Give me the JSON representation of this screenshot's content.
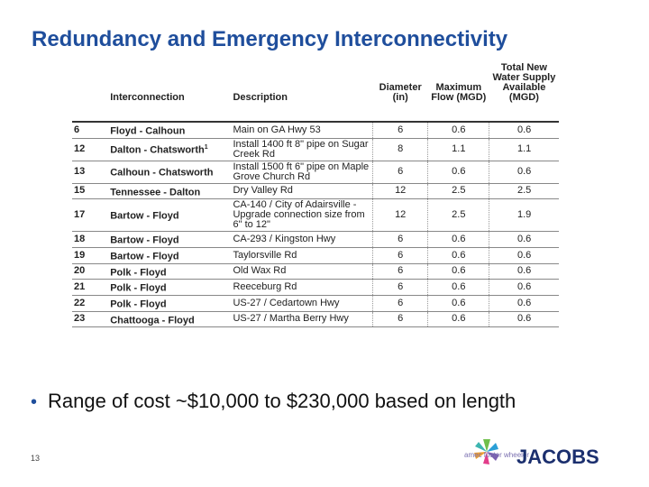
{
  "title": "Redundancy and Emergency Interconnectivity",
  "table": {
    "headers": {
      "id": "",
      "interconnection": "Interconnection",
      "description": "Description",
      "diameter": "Diameter (in)",
      "max_flow": "Maximum Flow (MGD)",
      "total_new": "Total New Water Supply Available (MGD)"
    },
    "rows": [
      {
        "id": "6",
        "interconnection": "Floyd - Calhoun",
        "sup": "",
        "description": "Main on GA Hwy 53",
        "diameter": "6",
        "max_flow": "0.6",
        "total_new": "0.6"
      },
      {
        "id": "12",
        "interconnection": "Dalton - Chatsworth",
        "sup": "1",
        "description": "Install 1400 ft 8\" pipe on Sugar Creek Rd",
        "diameter": "8",
        "max_flow": "1.1",
        "total_new": "1.1"
      },
      {
        "id": "13",
        "interconnection": "Calhoun - Chatsworth",
        "sup": "",
        "description": "Install 1500 ft 6\" pipe on Maple Grove Church Rd",
        "diameter": "6",
        "max_flow": "0.6",
        "total_new": "0.6"
      },
      {
        "id": "15",
        "interconnection": "Tennessee - Dalton",
        "sup": "",
        "description": "Dry Valley Rd",
        "diameter": "12",
        "max_flow": "2.5",
        "total_new": "2.5"
      },
      {
        "id": "17",
        "interconnection": "Bartow - Floyd",
        "sup": "",
        "description": "CA-140 / City of Adairsville - Upgrade connection size from 6\" to 12\"",
        "diameter": "12",
        "max_flow": "2.5",
        "total_new": "1.9"
      },
      {
        "id": "18",
        "interconnection": "Bartow - Floyd",
        "sup": "",
        "description": "CA-293 / Kingston Hwy",
        "diameter": "6",
        "max_flow": "0.6",
        "total_new": "0.6"
      },
      {
        "id": "19",
        "interconnection": "Bartow - Floyd",
        "sup": "",
        "description": "Taylorsville Rd",
        "diameter": "6",
        "max_flow": "0.6",
        "total_new": "0.6"
      },
      {
        "id": "20",
        "interconnection": "Polk - Floyd",
        "sup": "",
        "description": "Old Wax Rd",
        "diameter": "6",
        "max_flow": "0.6",
        "total_new": "0.6"
      },
      {
        "id": "21",
        "interconnection": "Polk - Floyd",
        "sup": "",
        "description": "Reeceburg Rd",
        "diameter": "6",
        "max_flow": "0.6",
        "total_new": "0.6"
      },
      {
        "id": "22",
        "interconnection": "Polk - Floyd",
        "sup": "",
        "description": "US-27 / Cedartown Hwy",
        "diameter": "6",
        "max_flow": "0.6",
        "total_new": "0.6"
      },
      {
        "id": "23",
        "interconnection": "Chattooga - Floyd",
        "sup": "",
        "description": "US-27 / Martha Berry Hwy",
        "diameter": "6",
        "max_flow": "0.6",
        "total_new": "0.6"
      }
    ]
  },
  "bullet": "Range of cost ~$10,000 to $230,000 based on length",
  "page_number": "13",
  "logos": {
    "amec": "amec foster wheeler",
    "jacobs": "JACOBS"
  },
  "colors": {
    "title": "#1f4e9c",
    "jacobs": "#1b2f6e"
  }
}
